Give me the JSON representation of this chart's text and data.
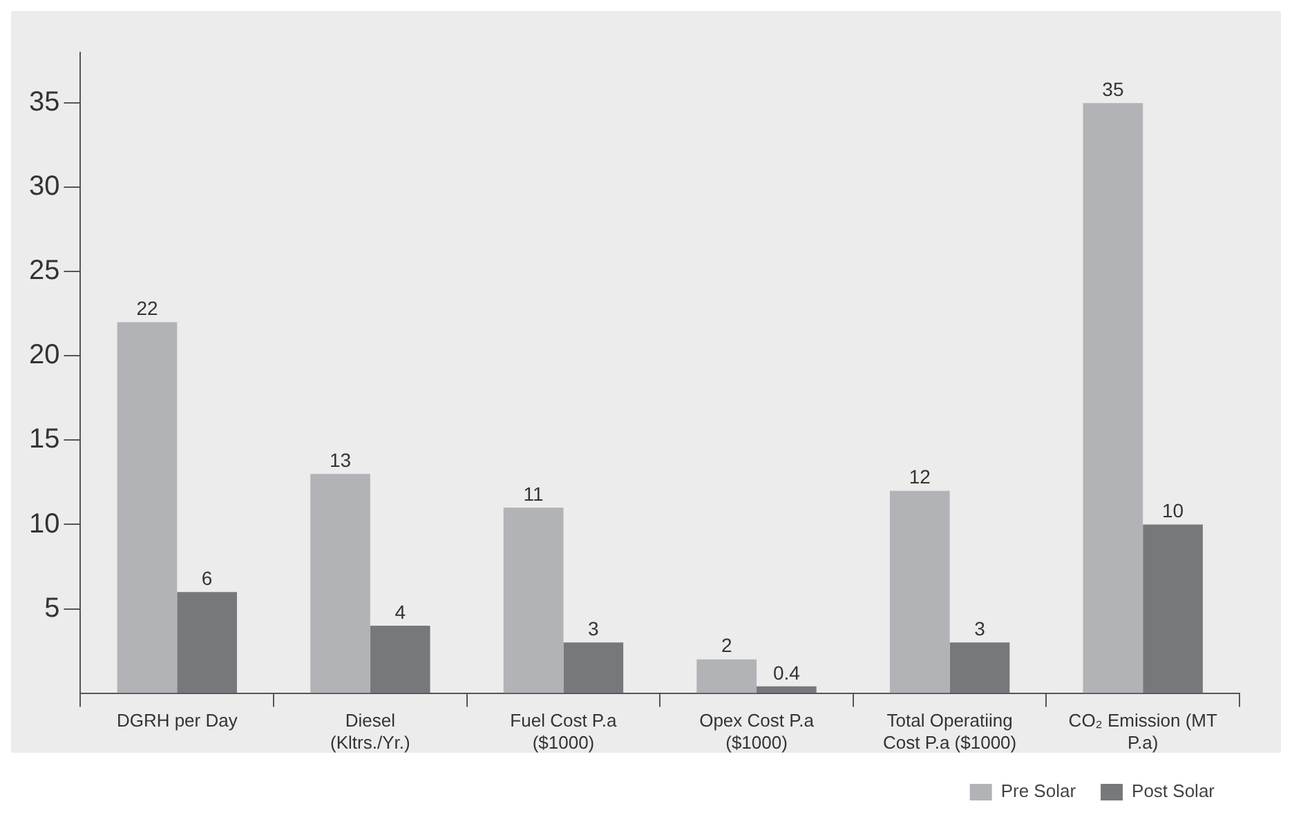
{
  "chart_data": {
    "type": "bar",
    "categories": [
      "DGRH per Day",
      "Diesel (Kltrs./Yr.)",
      "Fuel Cost P.a ($1000)",
      "Opex Cost P.a ($1000)",
      "Total Operatiing Cost P.a ($1000)",
      "CO₂ Emission (MT P.a)"
    ],
    "series": [
      {
        "name": "Pre Solar",
        "color": "#b1b3b6",
        "values": [
          22,
          13,
          11,
          2,
          12,
          35
        ]
      },
      {
        "name": "Post Solar",
        "color": "#77787b",
        "values": [
          6,
          4,
          3,
          0.4,
          3,
          10
        ]
      }
    ],
    "ylim": [
      0,
      38
    ],
    "yticks": [
      5,
      10,
      15,
      20,
      25,
      30,
      35
    ],
    "grid": false,
    "legend": "bottom right",
    "data_labels": true
  }
}
